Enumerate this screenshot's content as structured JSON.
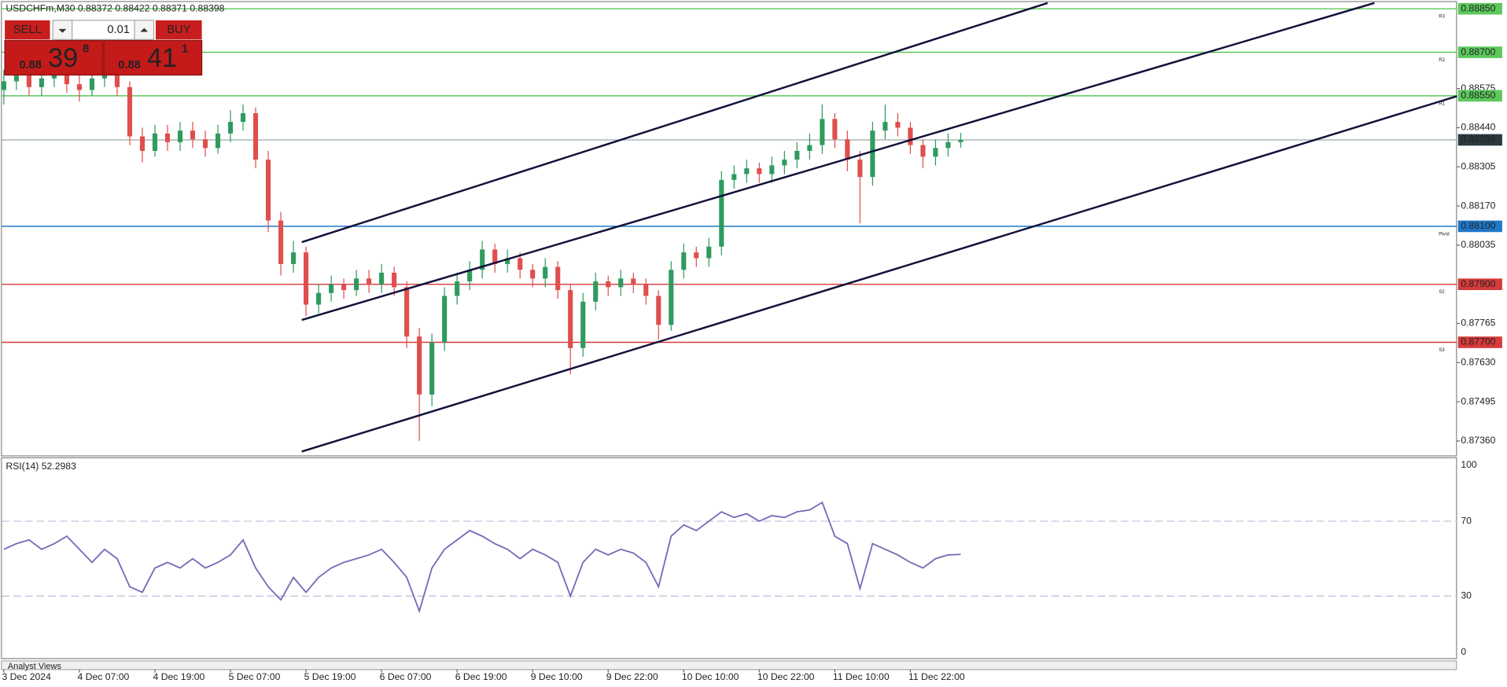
{
  "chart_data": {
    "type": "candlestick",
    "title": "USDCHFm,M30 0.88372 0.88422 0.88371 0.88398",
    "categories": [
      "3 Dec 2024",
      null,
      null,
      null,
      null,
      null,
      "4 Dec 07:00",
      null,
      null,
      null,
      null,
      null,
      "4 Dec 19:00",
      null,
      null,
      null,
      null,
      null,
      "5 Dec 07:00",
      null,
      null,
      null,
      null,
      null,
      "5 Dec 19:00",
      null,
      null,
      null,
      null,
      null,
      "6 Dec 07:00",
      null,
      null,
      null,
      null,
      null,
      "6 Dec 19:00",
      null,
      null,
      null,
      null,
      null,
      "9 Dec 10:00",
      null,
      null,
      null,
      null,
      null,
      "9 Dec 22:00",
      null,
      null,
      null,
      null,
      null,
      "10 Dec 10:00",
      null,
      null,
      null,
      null,
      null,
      "10 Dec 22:00",
      null,
      null,
      null,
      null,
      null,
      "11 Dec 10:00",
      null,
      null,
      null,
      null,
      null,
      "11 Dec 22:00",
      null,
      null,
      null,
      null
    ],
    "open": [
      0.8857,
      0.886,
      0.8862,
      0.8858,
      0.8861,
      0.8863,
      0.8859,
      0.8857,
      0.8861,
      0.8862,
      0.8858,
      0.8841,
      0.8836,
      0.8842,
      0.8839,
      0.8843,
      0.884,
      0.8837,
      0.8842,
      0.8846,
      0.8849,
      0.8833,
      0.8812,
      0.8797,
      0.8801,
      0.8783,
      0.8787,
      0.879,
      0.8788,
      0.8792,
      0.879,
      0.8794,
      0.8789,
      0.8772,
      0.8752,
      0.877,
      0.8786,
      0.8791,
      0.8795,
      0.8802,
      0.8797,
      0.8799,
      0.8795,
      0.8792,
      0.8796,
      0.8788,
      0.8768,
      0.8784,
      0.8791,
      0.8789,
      0.8792,
      0.879,
      0.8786,
      0.8776,
      0.8795,
      0.8801,
      0.8799,
      0.8803,
      0.8826,
      0.8828,
      0.883,
      0.8828,
      0.8831,
      0.8833,
      0.8836,
      0.8838,
      0.8847,
      0.884,
      0.8833,
      0.8827,
      0.8843,
      0.8846,
      0.8844,
      0.8838,
      0.8834,
      0.8837,
      0.8839
    ],
    "high": [
      0.8864,
      0.8866,
      0.8865,
      0.8864,
      0.8866,
      0.8865,
      0.8862,
      0.8864,
      0.8866,
      0.8864,
      0.886,
      0.8844,
      0.8845,
      0.8845,
      0.8846,
      0.8846,
      0.8843,
      0.8845,
      0.885,
      0.8852,
      0.8851,
      0.8836,
      0.8815,
      0.8805,
      0.8803,
      0.879,
      0.8793,
      0.8792,
      0.8795,
      0.8795,
      0.8797,
      0.8796,
      0.8791,
      0.8775,
      0.8773,
      0.8789,
      0.8794,
      0.8798,
      0.8805,
      0.8804,
      0.8802,
      0.8801,
      0.8797,
      0.8799,
      0.8798,
      0.879,
      0.8787,
      0.8794,
      0.8793,
      0.8795,
      0.8794,
      0.8792,
      0.8788,
      0.8798,
      0.8804,
      0.8803,
      0.8806,
      0.8829,
      0.8831,
      0.8833,
      0.8832,
      0.8834,
      0.8836,
      0.8839,
      0.8842,
      0.8852,
      0.8849,
      0.8843,
      0.8836,
      0.8846,
      0.8852,
      0.8849,
      0.8846,
      0.884,
      0.884,
      0.8842,
      0.88422
    ],
    "low": [
      0.8852,
      0.8857,
      0.8855,
      0.8855,
      0.8858,
      0.8856,
      0.8853,
      0.8855,
      0.8858,
      0.8855,
      0.8838,
      0.8832,
      0.8834,
      0.8836,
      0.8836,
      0.8837,
      0.8834,
      0.8835,
      0.8839,
      0.8843,
      0.883,
      0.8808,
      0.8793,
      0.8794,
      0.8779,
      0.878,
      0.8784,
      0.8785,
      0.8786,
      0.8787,
      0.8787,
      0.8786,
      0.8768,
      0.8736,
      0.8748,
      0.8767,
      0.8783,
      0.8788,
      0.8792,
      0.8794,
      0.8794,
      0.8792,
      0.8789,
      0.8789,
      0.8785,
      0.8759,
      0.8765,
      0.8781,
      0.8786,
      0.8786,
      0.8787,
      0.8783,
      0.8771,
      0.8774,
      0.8792,
      0.8796,
      0.8796,
      0.88,
      0.8823,
      0.8825,
      0.8825,
      0.8825,
      0.8828,
      0.883,
      0.8833,
      0.8835,
      0.8837,
      0.8829,
      0.8811,
      0.8824,
      0.884,
      0.8841,
      0.8835,
      0.883,
      0.8831,
      0.8834,
      0.88371
    ],
    "close": [
      0.886,
      0.8862,
      0.8858,
      0.8861,
      0.8863,
      0.8859,
      0.8857,
      0.8861,
      0.8862,
      0.8858,
      0.8841,
      0.8836,
      0.8842,
      0.8839,
      0.8843,
      0.884,
      0.8837,
      0.8842,
      0.8846,
      0.8849,
      0.8833,
      0.8812,
      0.8797,
      0.8801,
      0.8783,
      0.8787,
      0.879,
      0.8788,
      0.8792,
      0.879,
      0.8794,
      0.8789,
      0.8772,
      0.8752,
      0.877,
      0.8786,
      0.8791,
      0.8795,
      0.8802,
      0.8797,
      0.8799,
      0.8795,
      0.8792,
      0.8796,
      0.8788,
      0.8768,
      0.8784,
      0.8791,
      0.8789,
      0.8792,
      0.879,
      0.8786,
      0.8776,
      0.8795,
      0.8801,
      0.8799,
      0.8803,
      0.8826,
      0.8828,
      0.883,
      0.8828,
      0.8831,
      0.8833,
      0.8836,
      0.8838,
      0.8847,
      0.884,
      0.8833,
      0.8827,
      0.8843,
      0.8846,
      0.8844,
      0.8838,
      0.8834,
      0.8837,
      0.8839,
      0.88398
    ],
    "up_color": "#2e9b5f",
    "down_color": "#e04e4e",
    "ylim": [
      0.8731,
      0.8887
    ],
    "yticks": [
      {
        "value": 0.88575,
        "label": "0.88575"
      },
      {
        "value": 0.8844,
        "label": "0.88440"
      },
      {
        "value": 0.88305,
        "label": "0.88305"
      },
      {
        "value": 0.8817,
        "label": "0.88170"
      },
      {
        "value": 0.88035,
        "label": "0.88035"
      },
      {
        "value": 0.87765,
        "label": "0.87765"
      },
      {
        "value": 0.8763,
        "label": "0.87630"
      },
      {
        "value": 0.87495,
        "label": "0.87495"
      },
      {
        "value": 0.8736,
        "label": "0.87360"
      }
    ],
    "levels": [
      {
        "name": "R3",
        "value": 0.8885,
        "label": "0.88850",
        "color": "#5cc85c"
      },
      {
        "name": "R2",
        "value": 0.887,
        "label": "0.88700",
        "color": "#5cc85c"
      },
      {
        "name": "R1",
        "value": 0.8855,
        "label": "0.88550",
        "color": "#5cc85c"
      },
      {
        "name": "Pivot",
        "value": 0.881,
        "label": "0.88100",
        "color": "#1f78c8"
      },
      {
        "name": "S2",
        "value": 0.879,
        "label": "0.87900",
        "color": "#d63a3a"
      },
      {
        "name": "S3",
        "value": 0.877,
        "label": "0.87700",
        "color": "#d63a3a"
      }
    ],
    "current_price": {
      "value": 0.88398,
      "label": "0.88398"
    },
    "indicator": {
      "type": "line",
      "title": "RSI(14) 52.2983",
      "color": "#7b68b8",
      "values": [
        55,
        58,
        60,
        55,
        58,
        62,
        55,
        48,
        55,
        50,
        35,
        32,
        45,
        48,
        45,
        50,
        45,
        48,
        52,
        60,
        45,
        35,
        28,
        40,
        32,
        40,
        45,
        48,
        50,
        52,
        55,
        48,
        40,
        22,
        45,
        55,
        60,
        65,
        62,
        58,
        55,
        50,
        55,
        52,
        48,
        30,
        48,
        55,
        52,
        55,
        53,
        48,
        35,
        62,
        68,
        65,
        70,
        75,
        72,
        74,
        70,
        73,
        72,
        75,
        76,
        80,
        62,
        58,
        34,
        58,
        55,
        52,
        48,
        45,
        50,
        52,
        52.3
      ],
      "ylim": [
        0,
        100
      ],
      "yticks": [
        0,
        30,
        70,
        100
      ],
      "grid": true
    }
  },
  "trade_panel": {
    "sell": "SELL",
    "buy": "BUY",
    "volume": "0.01",
    "bid": {
      "prefix": "0.88",
      "main": "39",
      "sup": "8"
    },
    "ask": {
      "prefix": "0.88",
      "main": "41",
      "sup": "1"
    }
  },
  "footer": "Analyst Views"
}
